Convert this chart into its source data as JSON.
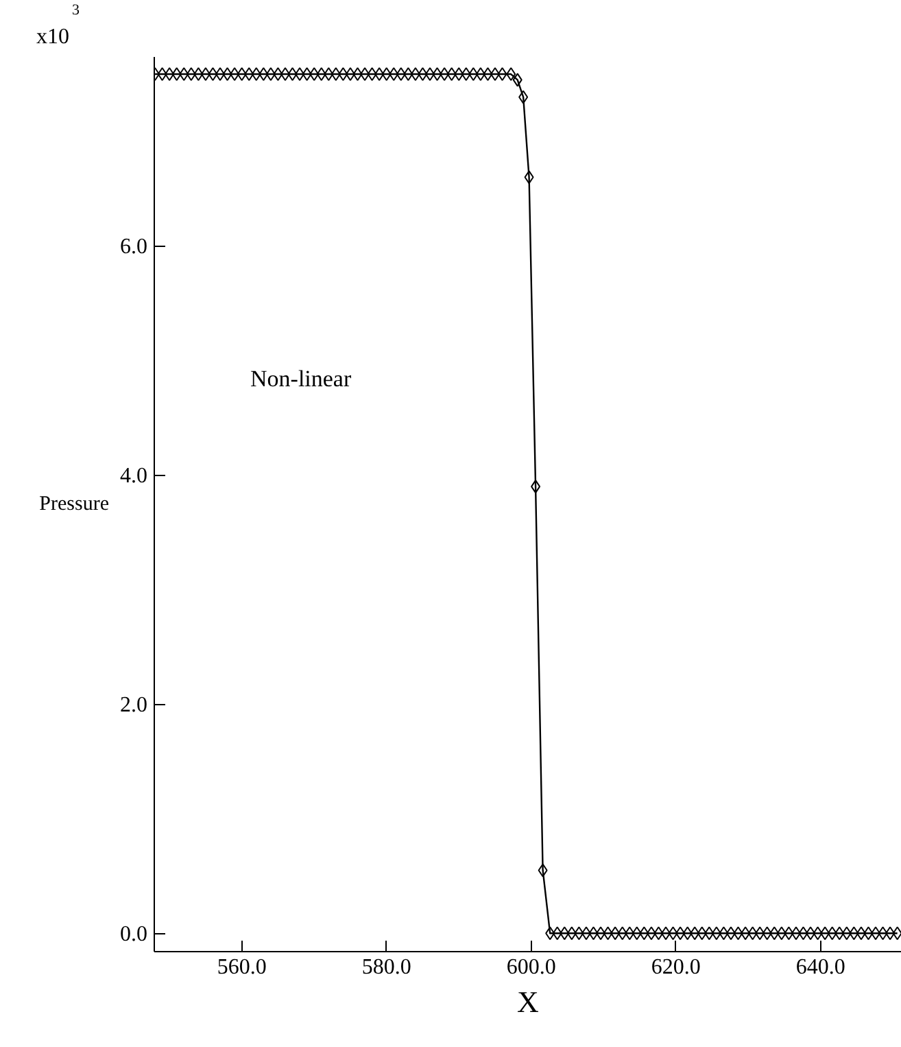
{
  "chart_data": {
    "type": "line",
    "xlabel": "X",
    "ylabel": "Pressure",
    "annotations": [
      "x10$^{3}$",
      "Non-linear"
    ],
    "xlim": [
      547.9,
      651.2
    ],
    "ylim": [
      -0.16,
      7.65
    ],
    "xticks": [
      {
        "value": 560,
        "label": "560.0"
      },
      {
        "value": 580,
        "label": "580.0"
      },
      {
        "value": 600,
        "label": "600.0"
      },
      {
        "value": 620,
        "label": "620.0"
      },
      {
        "value": 640,
        "label": "640.0"
      }
    ],
    "yticks": [
      {
        "value": 0,
        "label": "0.0"
      },
      {
        "value": 2,
        "label": "2.0"
      },
      {
        "value": 4,
        "label": "4.0"
      },
      {
        "value": 6,
        "label": "6.0"
      }
    ],
    "marker": "diamond",
    "line_style": "solid",
    "grid": false,
    "series": [
      {
        "color": "#000000",
        "x": [
          548,
          549,
          550,
          551,
          552,
          553,
          554,
          555,
          556,
          557,
          558,
          559,
          560,
          561,
          562,
          563,
          564,
          565,
          566,
          567,
          568,
          569,
          570,
          571,
          572,
          573,
          574,
          575,
          576,
          577,
          578,
          579,
          580,
          581,
          582,
          583,
          584,
          585,
          586,
          587,
          588,
          589,
          590,
          591,
          592,
          593,
          594,
          595,
          596,
          597.2,
          598.1,
          598.9,
          599.7,
          600.6,
          601.6,
          602.6,
          603.6,
          604.6,
          605.6,
          606.6,
          607.6,
          608.6,
          609.6,
          610.6,
          611.6,
          612.6,
          613.6,
          614.6,
          615.6,
          616.6,
          617.6,
          618.6,
          619.6,
          620.6,
          621.6,
          622.6,
          623.6,
          624.6,
          625.6,
          626.6,
          627.6,
          628.6,
          629.6,
          630.6,
          631.6,
          632.6,
          633.6,
          634.6,
          635.6,
          636.6,
          637.6,
          638.6,
          639.6,
          640.6,
          641.6,
          642.6,
          643.6,
          644.6,
          645.6,
          646.6,
          647.6,
          648.6,
          649.6,
          650.6
        ],
        "values": [
          7.5,
          7.5,
          7.5,
          7.5,
          7.5,
          7.5,
          7.5,
          7.5,
          7.5,
          7.5,
          7.5,
          7.5,
          7.5,
          7.5,
          7.5,
          7.5,
          7.5,
          7.5,
          7.5,
          7.5,
          7.5,
          7.5,
          7.5,
          7.5,
          7.5,
          7.5,
          7.5,
          7.5,
          7.5,
          7.5,
          7.5,
          7.5,
          7.5,
          7.5,
          7.5,
          7.5,
          7.5,
          7.5,
          7.5,
          7.5,
          7.5,
          7.5,
          7.5,
          7.5,
          7.5,
          7.5,
          7.5,
          7.5,
          7.5,
          7.5,
          7.45,
          7.3,
          6.6,
          3.9,
          0.55,
          0,
          0,
          0,
          0,
          0,
          0,
          0,
          0,
          0,
          0,
          0,
          0,
          0,
          0,
          0,
          0,
          0,
          0,
          0,
          0,
          0,
          0,
          0,
          0,
          0,
          0,
          0,
          0,
          0,
          0,
          0,
          0,
          0,
          0,
          0,
          0,
          0,
          0,
          0,
          0,
          0,
          0,
          0,
          0,
          0,
          0,
          0,
          0,
          0
        ]
      }
    ]
  }
}
